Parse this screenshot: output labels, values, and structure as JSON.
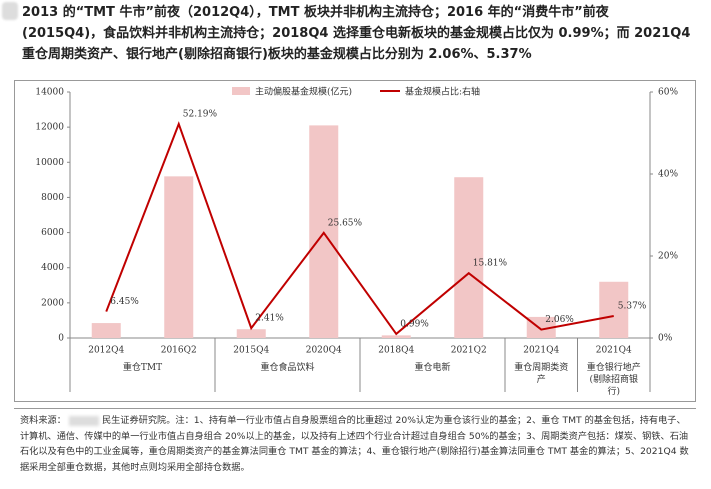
{
  "header": {
    "title_lines": [
      "2013 的“TMT 牛市”前夜（2012Q4），TMT 板块并非机构主流持仓；2016 年的“消费牛市”前夜",
      "(2015Q4)，食品饮料并非机构主流持仓；2018Q4 选择重仓电新板块的基金规模占比仅为 0.99%；而 2021Q4",
      "重仓周期类资产、银行地产(剔除招商银行)板块的基金规模占比分别为 2.06%、5.37%"
    ]
  },
  "chart_data": {
    "type": "bar-line",
    "categories": [
      "2012Q4",
      "2016Q2",
      "2015Q4",
      "2020Q4",
      "2018Q4",
      "2021Q2",
      "2021Q4",
      "2021Q4"
    ],
    "groups": [
      {
        "label": "重仓TMT",
        "span": [
          0,
          1
        ]
      },
      {
        "label": "重仓食品饮料",
        "span": [
          2,
          3
        ]
      },
      {
        "label": "重仓电新",
        "span": [
          4,
          5
        ]
      },
      {
        "label": "重仓周期类资产",
        "span": [
          6,
          6
        ]
      },
      {
        "label": "重仓银行地产(剔除招商银行)",
        "span": [
          7,
          7
        ]
      }
    ],
    "series": [
      {
        "name": "主动偏股基金规模(亿元)",
        "color": "#f2c6c6",
        "values": [
          850,
          9200,
          500,
          12100,
          150,
          9150,
          1200,
          3200
        ]
      },
      {
        "name": "基金规模占比:右轴",
        "color": "#c00000",
        "axis": "y2",
        "values": [
          6.45,
          52.19,
          2.41,
          25.65,
          0.99,
          15.81,
          2.06,
          5.37
        ],
        "value_labels": [
          "6.45%",
          "52.19%",
          "2.41%",
          "25.65%",
          "0.99%",
          "15.81%",
          "2.06%",
          "5.37%"
        ]
      }
    ],
    "ylim": [
      0,
      14000
    ],
    "yticks": [
      0,
      2000,
      4000,
      6000,
      8000,
      10000,
      12000,
      14000
    ],
    "y2lim": [
      0,
      60
    ],
    "y2ticks": [
      {
        "value": 0,
        "label": "0%"
      },
      {
        "value": 20,
        "label": "20%"
      },
      {
        "value": 40,
        "label": "40%"
      },
      {
        "value": 60,
        "label": "60%"
      }
    ],
    "legend": "top"
  },
  "footer": {
    "source_label": "资料来源：",
    "note": "民生证券研究院。注：1、持有单一行业市值占自身股票组合的比重超过 20%认定为重仓该行业的基金；2、重仓 TMT 的基金包括，持有电子、计算机、通信、传媒中的单一行业市值占自身组合 20%以上的基金，以及持有上述四个行业合计超过自身组合 50%的基金；3、周期类资产包括：煤炭、钢铁、石油石化以及有色中的工业金属等，重仓周期类资产的基金算法同重仓 TMT 基金的算法；4、重仓银行地产(剔除招行)基金算法同重仓 TMT 基金的算法；5、2021Q4 数据采用全部重仓数据，其他时点则均采用全部持仓数据。"
  }
}
